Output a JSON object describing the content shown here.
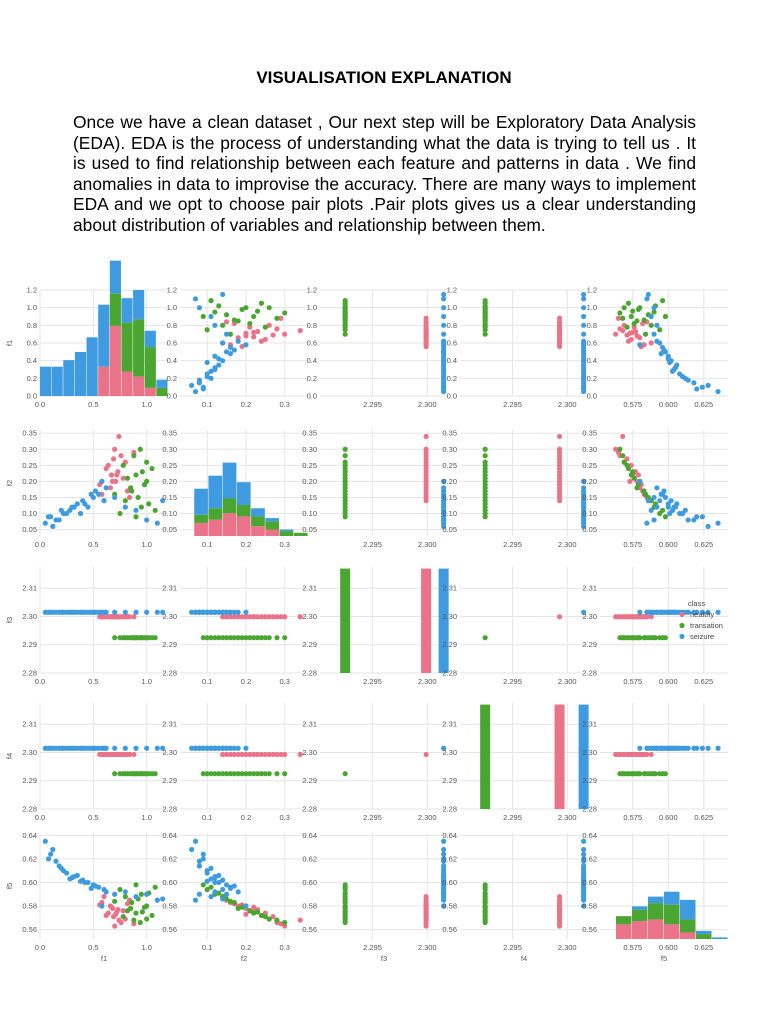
{
  "heading": "VISUALISATION EXPLANATION",
  "paragraph": "Once we have a clean dataset , Our next step will be Exploratory Data Analysis (EDA). EDA is the process of understanding what the data is trying to tell us . It is used to find relationship between each feature and patterns in data . We find anomalies in data to improvise the accuracy. There are many ways to implement EDA and we opt to choose pair plots .Pair plots gives us a clear understanding about distribution of variables and relationship between them.",
  "chart_data": {
    "type": "scatter",
    "kind": "pairplot",
    "variables": [
      "f1",
      "f2",
      "f3",
      "f4",
      "f5"
    ],
    "axis_labels": {
      "x": [
        "f1",
        "f2",
        "f3",
        "f4",
        "f5"
      ],
      "y": [
        "f1",
        "f2",
        "f3",
        "f4",
        "f5"
      ]
    },
    "axes": {
      "f1": {
        "lim": [
          0.0,
          1.2
        ],
        "ticks": [
          0.0,
          0.2,
          0.4,
          0.6,
          0.8,
          1.0,
          1.2
        ],
        "xticks": [
          0.0,
          0.5,
          1.0
        ],
        "xlim": [
          0.0,
          1.2
        ],
        "ticklabels": [
          "0.0",
          "0.2",
          "0.4",
          "0.6",
          "0.8",
          "1.0",
          "1.2"
        ],
        "xticklabels": [
          "0.0",
          "0.5",
          "1.0"
        ]
      },
      "f2": {
        "lim": [
          0.03,
          0.36
        ],
        "ticks": [
          0.05,
          0.1,
          0.15,
          0.2,
          0.25,
          0.3,
          0.35
        ],
        "xticks": [
          0.1,
          0.2,
          0.3
        ],
        "xlim": [
          0.03,
          0.36
        ],
        "ticklabels": [
          "0.05",
          "0.10",
          "0.15",
          "0.20",
          "0.25",
          "0.30",
          "0.35"
        ],
        "xticklabels": [
          "0.1",
          "0.2",
          "0.3"
        ]
      },
      "f3": {
        "lim": [
          2.28,
          2.3175
        ],
        "ticks": [
          2.28,
          2.29,
          2.3,
          2.31
        ],
        "xticks": [
          2.295,
          2.3
        ],
        "xlim": [
          2.2902,
          2.3019
        ],
        "ticklabels": [
          "2.28",
          "2.29",
          "2.30",
          "2.31"
        ],
        "xticklabels": [
          "2.295",
          "2.300"
        ]
      },
      "f4": {
        "lim": [
          2.28,
          2.3175
        ],
        "ticks": [
          2.28,
          2.29,
          2.3,
          2.31
        ],
        "xticks": [
          2.295,
          2.3
        ],
        "xlim": [
          2.2902,
          2.3019
        ],
        "ticklabels": [
          "2.28",
          "2.29",
          "2.30",
          "2.31"
        ],
        "xticklabels": [
          "2.295",
          "2.300"
        ]
      },
      "f5": {
        "lim": [
          0.552,
          0.642
        ],
        "ticks": [
          0.56,
          0.58,
          0.6,
          0.62,
          0.64
        ],
        "xticks": [
          0.575,
          0.6,
          0.625
        ],
        "xlim": [
          0.552,
          0.642
        ],
        "ticklabels": [
          "0.56",
          "0.58",
          "0.60",
          "0.62",
          "0.64"
        ],
        "xticklabels": [
          "0.575",
          "0.600",
          "0.625"
        ]
      }
    },
    "legend": {
      "title": "class",
      "placement": "right of row f3, column f5",
      "entries": [
        {
          "name": "healthy",
          "color": "#ea7389"
        },
        {
          "name": "transation",
          "color": "#4aa531"
        },
        {
          "name": "seizure",
          "color": "#3f9be0"
        }
      ]
    },
    "classes": {
      "healthy": {
        "color": "#ea7389",
        "f1": [
          0.62,
          0.68,
          0.72,
          0.76,
          0.8,
          0.58,
          0.66,
          0.7,
          0.74,
          0.84,
          0.56,
          0.64,
          0.78,
          0.6,
          0.69,
          0.73,
          0.82,
          0.88,
          0.67,
          0.71
        ],
        "f2": [
          0.24,
          0.2,
          0.22,
          0.28,
          0.26,
          0.16,
          0.18,
          0.3,
          0.34,
          0.15,
          0.19,
          0.25,
          0.21,
          0.14,
          0.27,
          0.23,
          0.17,
          0.29,
          0.22,
          0.2
        ],
        "f3": 2.2999,
        "f4": 2.2993,
        "f5": [
          0.572,
          0.578,
          0.575,
          0.566,
          0.569,
          0.583,
          0.58,
          0.563,
          0.568,
          0.585,
          0.581,
          0.574,
          0.576,
          0.588,
          0.571,
          0.577,
          0.582,
          0.565,
          0.579,
          0.573
        ],
        "f1_hist": [
          0,
          0,
          0,
          0,
          0,
          0.18,
          0.43,
          0.15,
          0.12,
          0.05,
          0
        ],
        "f2_hist": [
          0,
          0.08,
          0.1,
          0.14,
          0.12,
          0.06,
          0.04,
          0,
          0
        ],
        "f5_hist": [
          0,
          0.09,
          0.11,
          0.12,
          0.09,
          0.04,
          0,
          0
        ]
      },
      "transation": {
        "color": "#4aa531",
        "f1": [
          0.7,
          0.8,
          0.85,
          0.9,
          0.95,
          1.0,
          1.05,
          0.75,
          0.88,
          0.92,
          0.98,
          1.02,
          0.82,
          0.86,
          0.94,
          1.08,
          0.78,
          0.96,
          1.0,
          0.9
        ],
        "f2": [
          0.16,
          0.14,
          0.18,
          0.22,
          0.12,
          0.2,
          0.24,
          0.1,
          0.28,
          0.15,
          0.19,
          0.13,
          0.21,
          0.17,
          0.3,
          0.11,
          0.25,
          0.23,
          0.26,
          0.09
        ],
        "f3": 2.2925,
        "f4": 2.2925,
        "f5": [
          0.584,
          0.588,
          0.578,
          0.574,
          0.59,
          0.58,
          0.572,
          0.594,
          0.568,
          0.586,
          0.579,
          0.591,
          0.576,
          0.583,
          0.566,
          0.596,
          0.571,
          0.575,
          0.569,
          0.598
        ],
        "f1_hist": [
          0,
          0,
          0,
          0,
          0,
          0,
          0.2,
          0.3,
          0.35,
          0.25,
          0.05
        ],
        "f2_hist": [
          0,
          0.05,
          0.07,
          0.09,
          0.07,
          0.06,
          0.05,
          0.03,
          0.02
        ],
        "f5_hist": [
          0,
          0.05,
          0.07,
          0.1,
          0.12,
          0.08,
          0.03,
          0
        ]
      },
      "seizure": {
        "color": "#3f9be0",
        "f1": [
          0.05,
          0.1,
          0.15,
          0.2,
          0.25,
          0.3,
          0.35,
          0.4,
          0.45,
          0.5,
          0.55,
          0.6,
          0.12,
          0.22,
          0.32,
          0.42,
          0.52,
          0.62,
          0.7,
          0.8,
          0.9,
          1.0,
          1.1,
          1.15,
          0.08,
          0.28,
          0.48,
          0.58,
          0.38,
          0.18
        ],
        "f2": [
          0.07,
          0.09,
          0.08,
          0.11,
          0.1,
          0.12,
          0.13,
          0.14,
          0.12,
          0.15,
          0.16,
          0.14,
          0.06,
          0.1,
          0.12,
          0.13,
          0.17,
          0.18,
          0.15,
          0.12,
          0.11,
          0.08,
          0.07,
          0.14,
          0.09,
          0.11,
          0.16,
          0.2,
          0.1,
          0.08
        ],
        "f3": 2.3015,
        "f4": 2.3015,
        "f5": [
          0.635,
          0.624,
          0.618,
          0.612,
          0.608,
          0.604,
          0.606,
          0.602,
          0.6,
          0.598,
          0.596,
          0.594,
          0.628,
          0.61,
          0.605,
          0.6,
          0.597,
          0.592,
          0.59,
          0.592,
          0.588,
          0.59,
          0.585,
          0.586,
          0.62,
          0.603,
          0.595,
          0.58,
          0.601,
          0.614
        ],
        "f1_hist": [
          0.18,
          0.18,
          0.22,
          0.27,
          0.36,
          0.38,
          0.2,
          0.15,
          0.18,
          0.1,
          0.05
        ],
        "f2_hist": [
          0,
          0.16,
          0.2,
          0.22,
          0.14,
          0.05,
          0.02,
          0.01,
          0
        ],
        "f5_hist": [
          0,
          0,
          0.02,
          0.04,
          0.08,
          0.12,
          0.02,
          0.01
        ]
      }
    }
  }
}
